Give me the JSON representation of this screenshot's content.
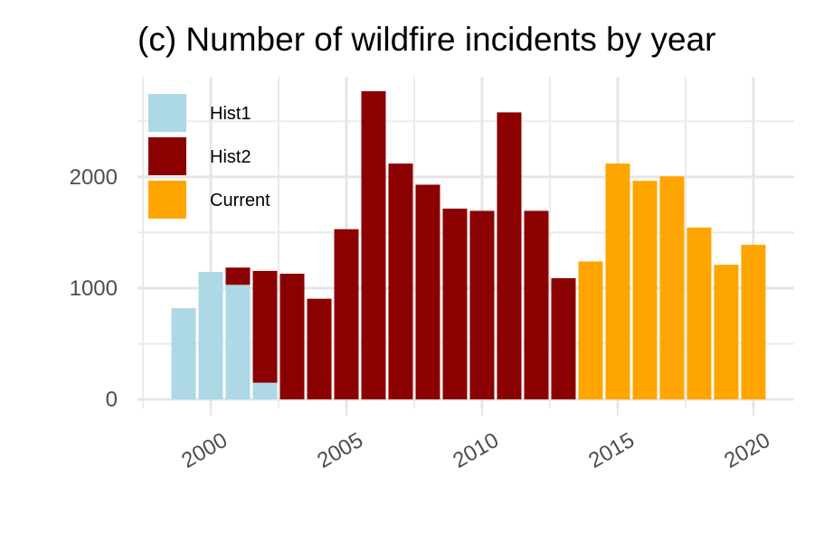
{
  "chart_data": {
    "type": "bar",
    "stacked": true,
    "title": "(c) Number of wildfire incidents by year",
    "xlabel": "",
    "ylabel": "",
    "x_ticks": [
      2000,
      2005,
      2010,
      2015,
      2020
    ],
    "y_ticks": [
      0,
      1000,
      2000
    ],
    "xlim": [
      1997.3,
      2021.5
    ],
    "ylim": [
      -80,
      2900
    ],
    "grid": true,
    "legend_position": "top-left",
    "colors": {
      "Hist1": "#add8e6",
      "Hist2": "#8b0000",
      "Current": "#ffa500"
    },
    "categories": [
      1999,
      2000,
      2001,
      2002,
      2003,
      2004,
      2005,
      2006,
      2007,
      2008,
      2009,
      2010,
      2011,
      2012,
      2013,
      2014,
      2015,
      2016,
      2017,
      2018,
      2019,
      2020
    ],
    "series": [
      {
        "name": "Hist1",
        "values": [
          820,
          1145,
          1030,
          150,
          0,
          0,
          0,
          0,
          0,
          0,
          0,
          0,
          0,
          0,
          0,
          0,
          0,
          0,
          0,
          0,
          0,
          0
        ]
      },
      {
        "name": "Hist2",
        "values": [
          0,
          0,
          155,
          1005,
          1130,
          905,
          1530,
          2770,
          2120,
          1930,
          1715,
          1695,
          2580,
          1695,
          1090,
          0,
          0,
          0,
          0,
          0,
          0,
          0
        ]
      },
      {
        "name": "Current",
        "values": [
          0,
          0,
          0,
          0,
          0,
          0,
          0,
          0,
          0,
          0,
          0,
          0,
          0,
          0,
          0,
          1240,
          2120,
          1965,
          2005,
          1545,
          1210,
          1390
        ]
      }
    ]
  }
}
